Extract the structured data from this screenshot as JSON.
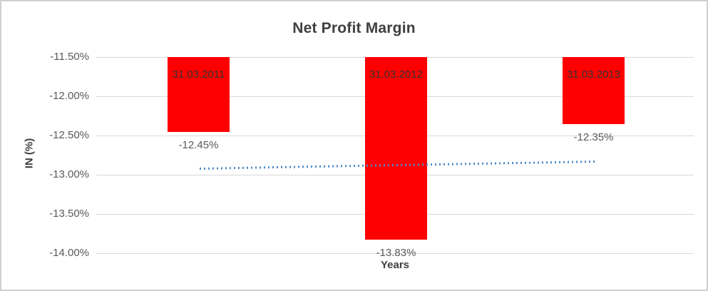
{
  "window": {
    "background": "#ffffff",
    "border_color": "#d0d0d0"
  },
  "chart_data": {
    "type": "bar",
    "title": "Net Profit Margin",
    "xlabel": "Years",
    "ylabel": "IN (%)",
    "categories": [
      "31.03.2011",
      "31.03.2012",
      "31.03.2013"
    ],
    "values": [
      -12.45,
      -13.83,
      -12.35
    ],
    "value_labels": [
      "-12.45%",
      "-13.83%",
      "-12.35%"
    ],
    "yticks": [
      "-11.50%",
      "-12.00%",
      "-12.50%",
      "-13.00%",
      "-13.50%",
      "-14.00%"
    ],
    "ylim": [
      -14.0,
      -11.5
    ],
    "grid": true,
    "legend": "none",
    "bar_color": "#ff0000",
    "gridline_color": "#d9d9d9",
    "trendline": {
      "type": "linear",
      "style": "dotted",
      "color": "#4e8ac9",
      "start_value": -12.92,
      "end_value": -12.83
    }
  }
}
